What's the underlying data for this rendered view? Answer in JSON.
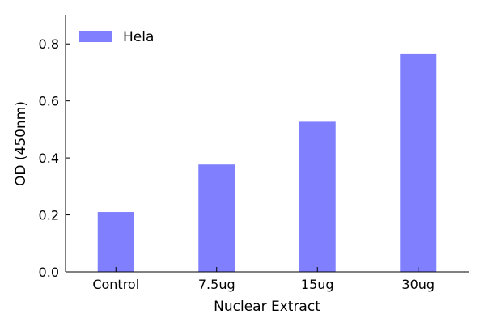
{
  "chart_data": {
    "type": "bar",
    "title": "",
    "xlabel": "Nuclear Extract",
    "ylabel": "OD (450nm)",
    "categories": [
      "Control",
      "7.5ug",
      "15ug",
      "30ug"
    ],
    "series": [
      {
        "name": "Hela",
        "values": [
          0.21,
          0.377,
          0.527,
          0.764
        ],
        "color": "#8080ff"
      }
    ],
    "ylim": [
      0,
      0.9
    ],
    "yticks": [
      0.0,
      0.2,
      0.4,
      0.6,
      0.8
    ],
    "ytick_labels": [
      "0.0",
      "0.2",
      "0.4",
      "0.6",
      "0.8"
    ],
    "grid": false,
    "legend": {
      "position": "top-left"
    }
  }
}
